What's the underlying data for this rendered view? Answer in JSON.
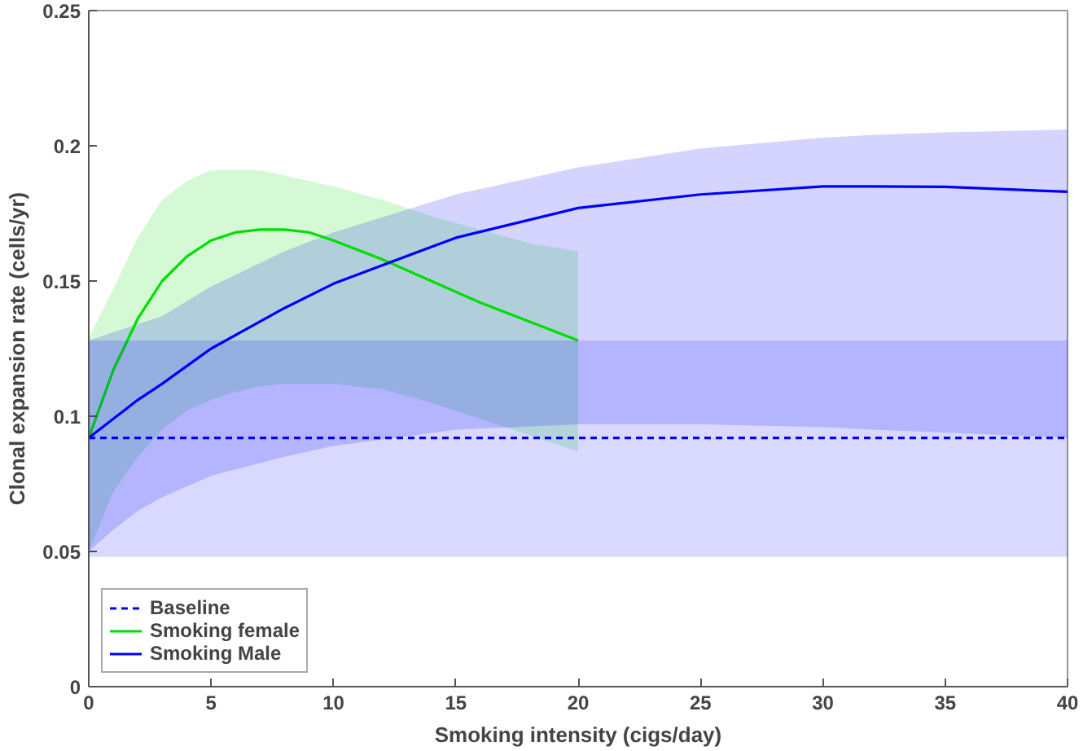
{
  "chart_data": {
    "type": "line",
    "xlabel": "Smoking intensity (cigs/day)",
    "ylabel": "Clonal expansion rate (cells/yr)",
    "xlim": [
      0,
      40
    ],
    "ylim": [
      0,
      0.25
    ],
    "xticks": [
      0,
      5,
      10,
      15,
      20,
      25,
      30,
      35,
      40
    ],
    "yticks": [
      0,
      0.05,
      0.1,
      0.15,
      0.2,
      0.25
    ],
    "grid": false,
    "legend": "bottom left",
    "marker": "none",
    "bands": [
      {
        "axis": "y",
        "from": 0.048,
        "to": 0.128,
        "color": "#0000ff"
      }
    ],
    "series": [
      {
        "name": "Baseline",
        "color": "#0000ff",
        "line_style": "dashed",
        "x": [
          0,
          40
        ],
        "values": [
          0.092,
          0.092
        ]
      },
      {
        "name": "Smoking female",
        "color": "#00dd00",
        "line_style": "solid",
        "x": [
          0,
          1,
          2,
          3,
          4,
          5,
          6,
          7,
          8,
          9,
          10,
          12,
          14,
          16,
          18,
          20
        ],
        "values": [
          0.092,
          0.117,
          0.136,
          0.15,
          0.159,
          0.165,
          0.168,
          0.169,
          0.169,
          0.168,
          0.165,
          0.158,
          0.15,
          0.142,
          0.135,
          0.128
        ],
        "upper": [
          0.129,
          0.147,
          0.166,
          0.18,
          0.187,
          0.191,
          0.191,
          0.191,
          0.189,
          0.187,
          0.185,
          0.18,
          0.174,
          0.169,
          0.164,
          0.161
        ],
        "lower": [
          0.05,
          0.072,
          0.085,
          0.095,
          0.102,
          0.106,
          0.109,
          0.111,
          0.112,
          0.112,
          0.112,
          0.11,
          0.105,
          0.099,
          0.093,
          0.087
        ]
      },
      {
        "name": "Smoking Male",
        "color": "#0000ff",
        "line_style": "solid",
        "x": [
          0,
          1,
          2,
          3,
          5,
          8,
          10,
          15,
          20,
          25,
          30,
          32,
          35,
          40
        ],
        "values": [
          0.092,
          0.099,
          0.106,
          0.112,
          0.125,
          0.14,
          0.149,
          0.166,
          0.177,
          0.182,
          0.185,
          0.185,
          0.1848,
          0.183
        ],
        "upper": [
          0.128,
          0.131,
          0.134,
          0.137,
          0.148,
          0.161,
          0.168,
          0.182,
          0.192,
          0.199,
          0.203,
          0.204,
          0.205,
          0.206
        ],
        "lower": [
          0.05,
          0.058,
          0.065,
          0.07,
          0.078,
          0.085,
          0.089,
          0.095,
          0.097,
          0.097,
          0.096,
          0.095,
          0.094,
          0.092
        ]
      }
    ]
  }
}
